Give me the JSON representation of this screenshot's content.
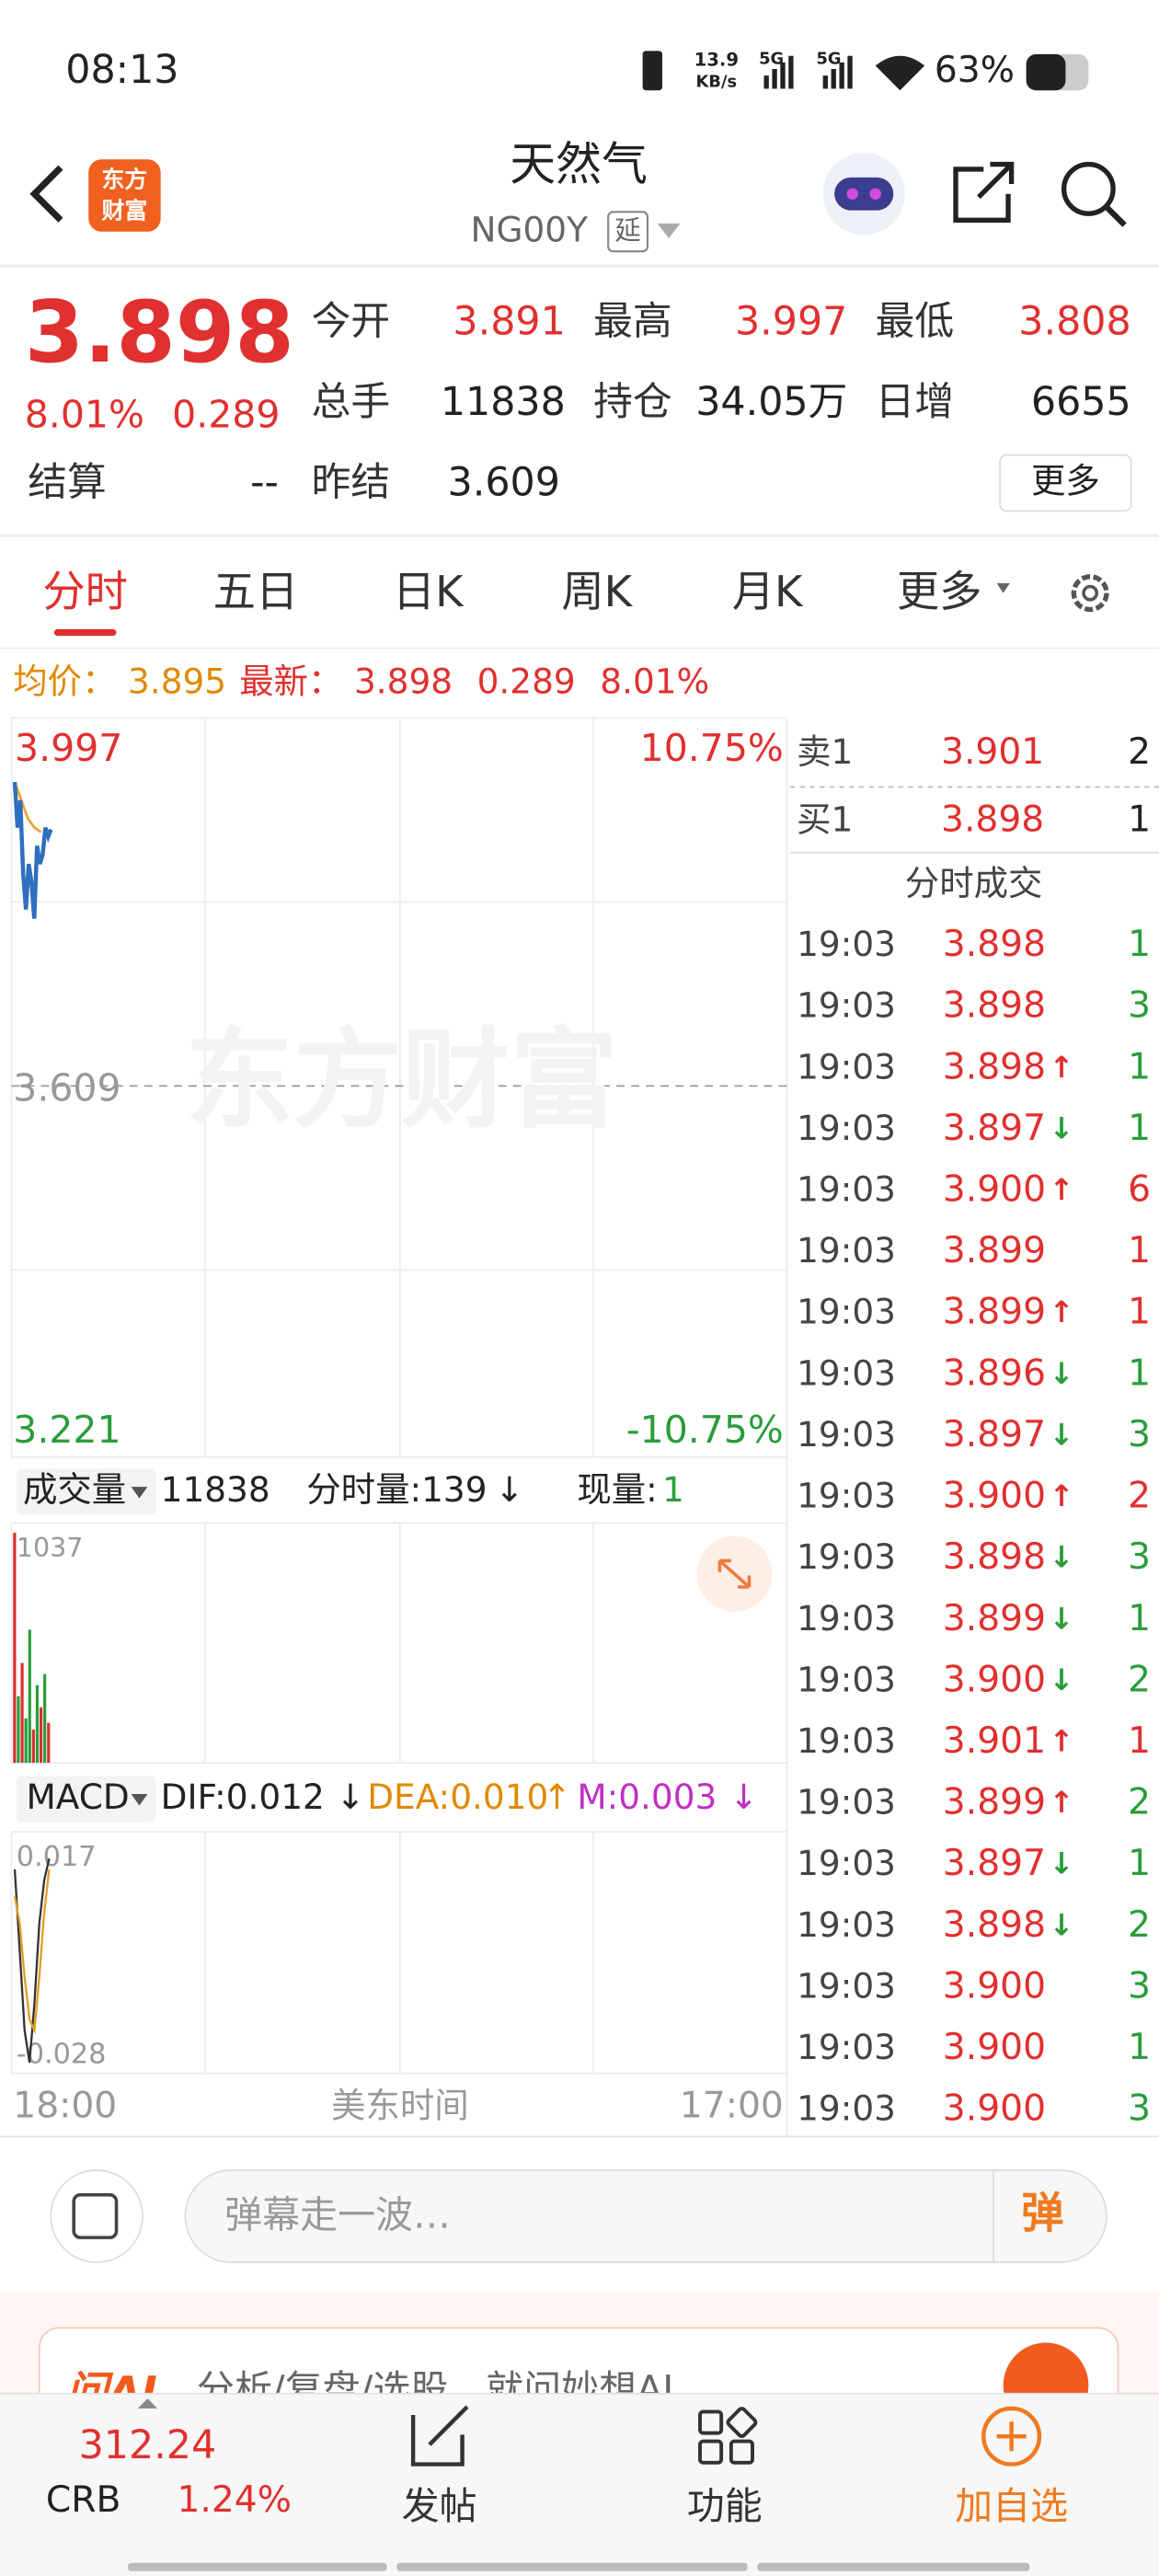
{
  "status_bar": {
    "time": "08:13",
    "net_speed": "13.9",
    "net_unit": "KB/s",
    "signal_1": "5G",
    "signal_2": "5G",
    "battery": "63%"
  },
  "header": {
    "logo_line_1": "东方",
    "logo_line_2": "财富",
    "title": "天然气",
    "code": "NG00Y",
    "delay_tag": "延"
  },
  "quote": {
    "price": "3.898",
    "change_pct": "8.01%",
    "change": "0.289",
    "fields": [
      {
        "label": "今开",
        "value": "3.891",
        "color": "#e0302f"
      },
      {
        "label": "最高",
        "value": "3.997",
        "color": "#e0302f"
      },
      {
        "label": "最低",
        "value": "3.808",
        "color": "#e0302f"
      },
      {
        "label": "总手",
        "value": "11838",
        "color": "#222222"
      },
      {
        "label": "持仓",
        "value": "34.05万",
        "color": "#222222"
      },
      {
        "label": "日增",
        "value": "6655",
        "color": "#222222"
      },
      {
        "label": "结算",
        "value": "--",
        "color": "#222222"
      },
      {
        "label": "昨结",
        "value": "3.609",
        "color": "#222222"
      }
    ],
    "more": "更多"
  },
  "tabs": [
    "分时",
    "五日",
    "日K",
    "周K",
    "月K",
    "更多"
  ],
  "intraday_info": {
    "avg_label": "均价：",
    "avg": "3.895",
    "last_label": "最新：",
    "last": "3.898",
    "change": "0.289",
    "change_pct": "8.01%"
  },
  "chart": {
    "watermark": "东方财富",
    "y_top_label": "3.997",
    "y_mid_label": "3.609",
    "y_bottom_label": "3.221",
    "pct_top_label": "10.75%",
    "pct_bottom_label": "-10.75%",
    "price": {
      "ylim": [
        3.221,
        3.997
      ],
      "values": [
        3.95,
        3.9,
        3.93,
        3.85,
        3.81,
        3.86,
        3.84,
        3.8,
        3.88,
        3.86,
        3.87,
        3.9,
        3.89,
        3.898
      ],
      "avg": [
        3.95,
        3.93,
        3.91,
        3.9,
        3.895
      ]
    },
    "volume": {
      "label": "成交量",
      "total": "11838",
      "tick_volume": "分时量:139",
      "tick_arrow": "↓",
      "current_label": "现量:",
      "current": "1",
      "max_label": "1037",
      "ylim": [
        0,
        1037
      ],
      "values": [
        1037,
        300,
        450,
        200,
        600,
        150,
        350,
        250,
        400,
        180
      ],
      "colors": [
        "#d9302f",
        "#2a9d3a",
        "#d9302f",
        "#2a9d3a",
        "#2a9d3a",
        "#d9302f",
        "#2a9d3a",
        "#d9302f",
        "#2a9d3a",
        "#d9302f"
      ]
    },
    "macd": {
      "label": "MACD",
      "dif": "DIF:0.012",
      "dif_arrow": "↓",
      "dea": "DEA:0.010",
      "dea_arrow": "↑",
      "m": "M:0.003",
      "m_arrow": "↓",
      "max_label": "0.017",
      "min_label": "-0.028",
      "ylim": [
        -0.028,
        0.017
      ],
      "dif_values": [
        0.01,
        -0.005,
        -0.02,
        -0.026,
        -0.015,
        0.0,
        0.008,
        0.012
      ],
      "dea_values": [
        0.005,
        0.0,
        -0.01,
        -0.018,
        -0.02,
        -0.01,
        0.002,
        0.01
      ]
    },
    "x_start": "18:00",
    "x_middle": "美东时间",
    "x_end": "17:00"
  },
  "order_book": {
    "sell": {
      "label": "卖1",
      "price": "3.901",
      "volume": "2"
    },
    "buy": {
      "label": "买1",
      "price": "3.898",
      "volume": "1"
    },
    "trades_title": "分时成交",
    "trades": [
      {
        "time": "19:03",
        "price": "3.898",
        "volume": "1",
        "color": "#2a9d3a"
      },
      {
        "time": "19:03",
        "price": "3.898",
        "volume": "3",
        "color": "#2a9d3a"
      },
      {
        "time": "19:03",
        "price": "3.898",
        "arrow": "↑",
        "volume": "1",
        "color": "#2a9d3a"
      },
      {
        "time": "19:03",
        "price": "3.897",
        "arrow": "↓",
        "volume": "1",
        "color": "#2a9d3a"
      },
      {
        "time": "19:03",
        "price": "3.900",
        "arrow": "↑",
        "volume": "6",
        "color": "#e0302f"
      },
      {
        "time": "19:03",
        "price": "3.899",
        "volume": "1",
        "color": "#e0302f"
      },
      {
        "time": "19:03",
        "price": "3.899",
        "arrow": "↑",
        "volume": "1",
        "color": "#e0302f"
      },
      {
        "time": "19:03",
        "price": "3.896",
        "arrow": "↓",
        "volume": "1",
        "color": "#2a9d3a"
      },
      {
        "time": "19:03",
        "price": "3.897",
        "arrow": "↓",
        "volume": "3",
        "color": "#2a9d3a"
      },
      {
        "time": "19:03",
        "price": "3.900",
        "arrow": "↑",
        "volume": "2",
        "color": "#e0302f"
      },
      {
        "time": "19:03",
        "price": "3.898",
        "arrow": "↓",
        "volume": "3",
        "color": "#2a9d3a"
      },
      {
        "time": "19:03",
        "price": "3.899",
        "arrow": "↓",
        "volume": "1",
        "color": "#2a9d3a"
      },
      {
        "time": "19:03",
        "price": "3.900",
        "arrow": "↓",
        "volume": "2",
        "color": "#2a9d3a"
      },
      {
        "time": "19:03",
        "price": "3.901",
        "arrow": "↑",
        "volume": "1",
        "color": "#e0302f"
      },
      {
        "time": "19:03",
        "price": "3.899",
        "arrow": "↑",
        "volume": "2",
        "color": "#2a9d3a"
      },
      {
        "time": "19:03",
        "price": "3.897",
        "arrow": "↓",
        "volume": "1",
        "color": "#2a9d3a"
      },
      {
        "time": "19:03",
        "price": "3.898",
        "arrow": "↓",
        "volume": "2",
        "color": "#2a9d3a"
      },
      {
        "time": "19:03",
        "price": "3.900",
        "volume": "3",
        "color": "#2a9d3a"
      },
      {
        "time": "19:03",
        "price": "3.900",
        "volume": "1",
        "color": "#2a9d3a"
      },
      {
        "time": "19:03",
        "price": "3.900",
        "volume": "3",
        "color": "#2a9d3a"
      }
    ]
  },
  "comment_bar": {
    "placeholder": "弹幕走一波…",
    "button": "弹"
  },
  "ai_banner": {
    "brand": "问AI",
    "text": "分析/复盘/选股，就问妙想AI"
  },
  "bottom_nav": {
    "index_value": "312.24",
    "index_name": "CRB",
    "index_change": "1.24%",
    "post": "发帖",
    "functions": "功能",
    "add_watchlist": "加自选"
  }
}
